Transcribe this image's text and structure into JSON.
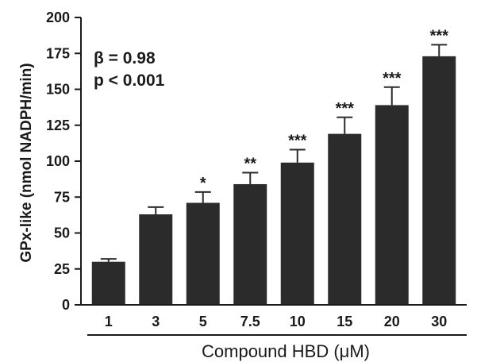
{
  "chart_data": {
    "type": "bar",
    "title": "",
    "xlabel": "Compound HBD (μM)",
    "ylabel": "GPx-like (nmol NADPH/min)",
    "categories": [
      "1",
      "3",
      "5",
      "7.5",
      "10",
      "15",
      "20",
      "30"
    ],
    "values": [
      30,
      63,
      71,
      84,
      99,
      119,
      139,
      173
    ],
    "errors": [
      2,
      5,
      7.5,
      8,
      9,
      11.5,
      12.5,
      8
    ],
    "significance": [
      "",
      "",
      "*",
      "**",
      "***",
      "***",
      "***",
      "***"
    ],
    "ylim": [
      0,
      200
    ],
    "yticks": [
      0,
      25,
      50,
      75,
      100,
      125,
      150,
      175,
      200
    ],
    "annotations": [
      "β = 0.98",
      "p < 0.001"
    ],
    "bar_color": "#2b2b2b",
    "grid": false,
    "legend": "none"
  }
}
